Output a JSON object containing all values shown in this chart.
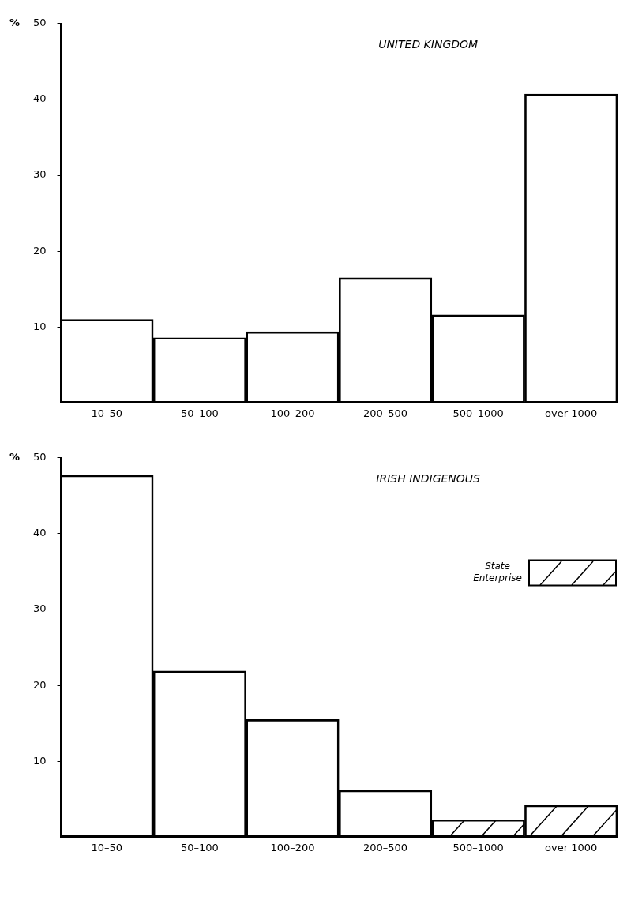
{
  "chart_data": [
    {
      "type": "bar",
      "title": "UNITED KINGDOM",
      "ylabel": "%",
      "categories": [
        "10–50",
        "50–100",
        "100–200",
        "200–500",
        "500–1000",
        "over 1000"
      ],
      "series": [
        {
          "color": "#000000",
          "values": [
            11.0,
            8.6,
            9.4,
            16.5,
            11.6,
            40.7
          ]
        }
      ],
      "ylim": [
        0,
        50
      ],
      "yticks": [
        10,
        20,
        30,
        40,
        50
      ],
      "grid": false
    },
    {
      "type": "bar",
      "title": "IRISH INDIGENOUS",
      "ylabel": "%",
      "categories": [
        "10–50",
        "50–100",
        "100–200",
        "200–500",
        "500–1000",
        "over 1000"
      ],
      "series": [
        {
          "color": "#000000",
          "values": [
            47.7,
            21.9,
            15.5,
            6.2,
            null,
            null
          ]
        },
        {
          "name": "State Enterprise",
          "color": "#000000",
          "values": [
            null,
            null,
            null,
            null,
            2.3,
            4.2
          ]
        }
      ],
      "stacked": true,
      "legend": "right",
      "ylim": [
        0,
        50
      ],
      "yticks": [
        10,
        20,
        30,
        40,
        50
      ],
      "grid": false
    }
  ]
}
